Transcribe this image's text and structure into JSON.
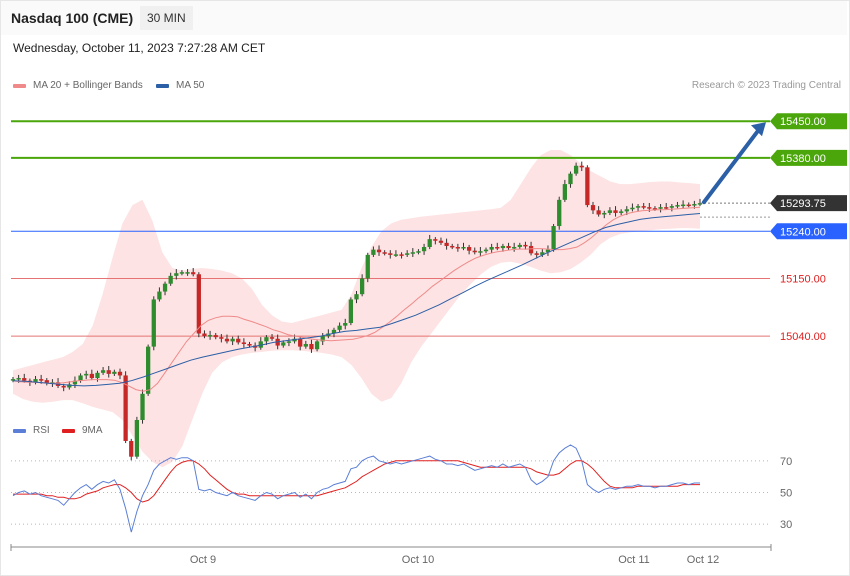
{
  "header": {
    "title": "Nasdaq 100 (CME)",
    "interval": "30 MIN",
    "timestamp": "Wednesday, October 11, 2023 7:27:28 AM CET"
  },
  "legend": {
    "main": [
      {
        "label": "MA 20 + Bollinger Bands",
        "color": "#f08a8a"
      },
      {
        "label": "MA 50",
        "color": "#2b5fa6"
      }
    ],
    "rsi": [
      {
        "label": "RSI",
        "color": "#5b7fd6"
      },
      {
        "label": "9MA",
        "color": "#e02020"
      }
    ],
    "credit": "Research © 2023 Trading Central"
  },
  "colors": {
    "up": "#2e8b2e",
    "down": "#c62828",
    "band": "#fde3e3",
    "ma20": "#f08a8a",
    "ma50": "#2b5fa6",
    "resistance": "#4aa60a",
    "support": "#e57373",
    "pivot": "#2962ff",
    "arrow": "#2b5fa6",
    "current": "#333333"
  },
  "chart_data": [
    {
      "type": "line",
      "title": "Nasdaq 100 (CME)",
      "ylim": [
        14880,
        15500
      ],
      "x_ticks": [
        "Oct 9",
        "Oct 10",
        "Oct 11",
        "Oct 12"
      ],
      "levels": [
        {
          "value": 15450.0,
          "label": "15450.00",
          "kind": "resistance"
        },
        {
          "value": 15380.0,
          "label": "15380.00",
          "kind": "resistance"
        },
        {
          "value": 15240.0,
          "label": "15240.00",
          "kind": "pivot"
        },
        {
          "value": 15150.0,
          "label": "15150.00",
          "kind": "support"
        },
        {
          "value": 15040.0,
          "label": "15040.00",
          "kind": "support"
        }
      ],
      "current": {
        "value": 15293.75,
        "label": "15293.75"
      },
      "close": [
        14958,
        14960,
        14955,
        14952,
        14958,
        14956,
        14950,
        14952,
        14945,
        14942,
        14948,
        14955,
        14965,
        14968,
        14960,
        14970,
        14975,
        14968,
        14972,
        14965,
        14840,
        14810,
        14880,
        14930,
        15020,
        15110,
        15125,
        15140,
        15155,
        15160,
        15162,
        15162,
        15158,
        15045,
        15040,
        15042,
        15038,
        15035,
        15030,
        15035,
        15028,
        15025,
        15022,
        15018,
        15030,
        15038,
        15035,
        15022,
        15028,
        15030,
        15035,
        15020,
        15025,
        15015,
        15030,
        15040,
        15045,
        15052,
        15060,
        15065,
        15110,
        15120,
        15150,
        15195,
        15205,
        15200,
        15198,
        15195,
        15196,
        15195,
        15198,
        15200,
        15202,
        15210,
        15225,
        15222,
        15218,
        15212,
        15210,
        15208,
        15210,
        15203,
        15200,
        15202,
        15205,
        15210,
        15208,
        15212,
        15208,
        15210,
        15214,
        15212,
        15198,
        15195,
        15200,
        15205,
        15250,
        15300,
        15330,
        15350,
        15365,
        15362,
        15290,
        15280,
        15272,
        15275,
        15280,
        15275,
        15278,
        15282,
        15285,
        15288,
        15286,
        15284,
        15283,
        15286,
        15285,
        15288,
        15290,
        15291,
        15290,
        15292,
        15293.75
      ],
      "ma20": [
        14955,
        14953,
        14952,
        14952,
        14951,
        14950,
        14950,
        14951,
        14953,
        14955,
        14956,
        14957,
        14957,
        14957,
        14956,
        14952,
        14945,
        14938,
        14935,
        14938,
        14950,
        14970,
        14990,
        15010,
        15030,
        15045,
        15060,
        15070,
        15075,
        15078,
        15078,
        15077,
        15072,
        15068,
        15063,
        15058,
        15052,
        15048,
        15043,
        15040,
        15038,
        15035,
        15033,
        15032,
        15031,
        15032,
        15033,
        15034,
        15037,
        15041,
        15047,
        15056,
        15066,
        15077,
        15089,
        15100,
        15112,
        15123,
        15135,
        15145,
        15155,
        15165,
        15174,
        15182,
        15189,
        15194,
        15198,
        15201,
        15203,
        15205,
        15206,
        15206,
        15207,
        15207,
        15206,
        15205,
        15205,
        15207,
        15210,
        15218,
        15228,
        15240,
        15252,
        15262,
        15269,
        15274,
        15277,
        15279,
        15280,
        15281,
        15281,
        15282,
        15283,
        15284,
        15285,
        15286
      ],
      "ma50": [
        14955,
        14954,
        14952,
        14950,
        14948,
        14946,
        14945,
        14946,
        14948,
        14950,
        14955,
        14962,
        14970,
        14978,
        14986,
        14994,
        15000,
        15005,
        15010,
        15015,
        15019,
        15023,
        15028,
        15031,
        15034,
        15037,
        15040,
        15045,
        15049,
        15051,
        15054,
        15057,
        15064,
        15072,
        15080,
        15090,
        15100,
        15112,
        15123,
        15135,
        15146,
        15156,
        15166,
        15176,
        15187,
        15198,
        15208,
        15218,
        15228,
        15238,
        15247,
        15253,
        15258,
        15263,
        15266,
        15268,
        15270,
        15272,
        15274
      ],
      "bb_upper": [
        14975,
        14980,
        14985,
        14990,
        14995,
        15000,
        15010,
        15025,
        15060,
        15120,
        15190,
        15255,
        15290,
        15300,
        15260,
        15200,
        15170,
        15165,
        15168,
        15170,
        15168,
        15165,
        15160,
        15150,
        15130,
        15100,
        15080,
        15068,
        15065,
        15070,
        15075,
        15080,
        15085,
        15090,
        15120,
        15170,
        15210,
        15240,
        15255,
        15262,
        15265,
        15268,
        15270,
        15272,
        15274,
        15276,
        15278,
        15280,
        15282,
        15285,
        15300,
        15330,
        15360,
        15385,
        15395,
        15395,
        15385,
        15370,
        15355,
        15345,
        15335,
        15330,
        15330,
        15332,
        15334,
        15335,
        15335,
        15333,
        15332,
        15330
      ],
      "bb_lower": [
        14930,
        14920,
        14915,
        14913,
        14915,
        14918,
        14918,
        14912,
        14905,
        14900,
        14895,
        14880,
        14850,
        14820,
        14800,
        14790,
        14800,
        14830,
        14880,
        14930,
        14970,
        14990,
        15000,
        15005,
        15008,
        15010,
        15012,
        15013,
        15013,
        15012,
        15010,
        15008,
        15005,
        15000,
        14985,
        14960,
        14930,
        14915,
        14922,
        14950,
        14990,
        15020,
        15045,
        15070,
        15095,
        15120,
        15140,
        15158,
        15172,
        15180,
        15182,
        15178,
        15172,
        15165,
        15160,
        15162,
        15168,
        15180,
        15195,
        15215,
        15228,
        15235,
        15238,
        15240,
        15242,
        15244,
        15245,
        15246,
        15246,
        15245
      ]
    },
    {
      "type": "line",
      "title": "RSI",
      "ylim": [
        20,
        80
      ],
      "y_ticks": [
        {
          "value": 70,
          "label": "70"
        },
        {
          "value": 50,
          "label": "50"
        },
        {
          "value": 30,
          "label": "30"
        }
      ],
      "rsi": [
        48,
        50,
        51,
        49,
        50,
        48,
        47,
        46,
        45,
        42,
        46,
        50,
        53,
        55,
        52,
        55,
        57,
        56,
        58,
        52,
        40,
        25,
        38,
        48,
        55,
        64,
        68,
        70,
        72,
        71,
        72,
        72,
        70,
        52,
        51,
        52,
        50,
        49,
        48,
        50,
        48,
        47,
        46,
        45,
        48,
        50,
        49,
        46,
        48,
        49,
        50,
        47,
        49,
        46,
        50,
        52,
        53,
        55,
        56,
        57,
        65,
        66,
        70,
        72,
        73,
        70,
        69,
        68,
        69,
        68,
        69,
        70,
        71,
        72,
        73,
        71,
        70,
        68,
        68,
        67,
        68,
        66,
        64,
        65,
        66,
        67,
        66,
        68,
        66,
        67,
        68,
        66,
        58,
        55,
        57,
        60,
        70,
        75,
        78,
        80,
        78,
        70,
        55,
        52,
        50,
        52,
        53,
        52,
        53,
        54,
        54,
        55,
        54,
        54,
        53,
        54,
        54,
        55,
        56,
        56,
        55,
        56,
        56
      ],
      "ma9": [
        49,
        49,
        49,
        49,
        49,
        49,
        48,
        48,
        47,
        47,
        46,
        46,
        47,
        49,
        50,
        51,
        53,
        54,
        55,
        55,
        53,
        50,
        46,
        44,
        45,
        48,
        53,
        58,
        63,
        67,
        69,
        70,
        70,
        68,
        65,
        61,
        58,
        55,
        52,
        50,
        49,
        49,
        48,
        48,
        48,
        48,
        48,
        48,
        48,
        48,
        48,
        48,
        48,
        48,
        48,
        49,
        50,
        51,
        52,
        53,
        55,
        57,
        60,
        62,
        64,
        66,
        68,
        69,
        70,
        70,
        70,
        70,
        70,
        70,
        70,
        70,
        70,
        70,
        70,
        70,
        69,
        68,
        67,
        66,
        66,
        66,
        66,
        66,
        66,
        66,
        66,
        66,
        65,
        63,
        62,
        61,
        61,
        62,
        65,
        68,
        70,
        70,
        68,
        65,
        61,
        57,
        54,
        53,
        53,
        53,
        53,
        54,
        54,
        54,
        54,
        54,
        54,
        54,
        54,
        55,
        55,
        55,
        55
      ]
    }
  ]
}
